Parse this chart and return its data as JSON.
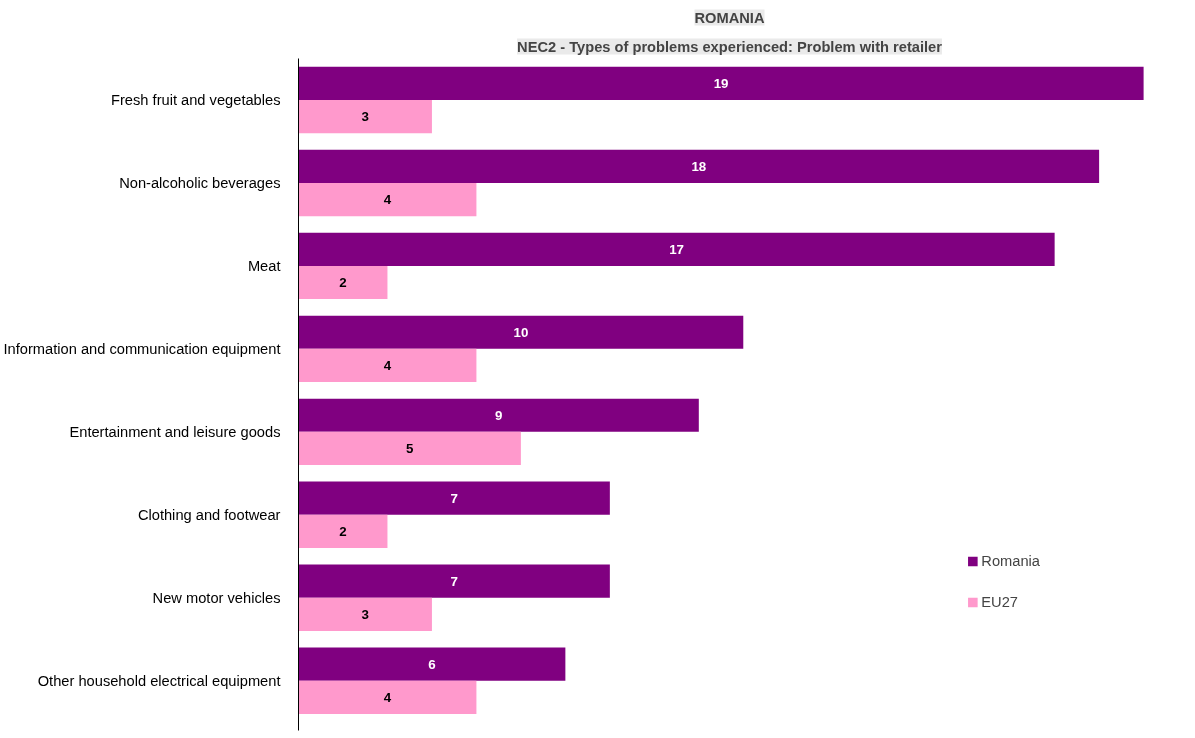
{
  "chart_data": {
    "type": "bar",
    "orientation": "horizontal",
    "title": "ROMANIA",
    "subtitle": "NEC2 - Types of problems experienced: Problem with retailer",
    "categories": [
      "Fresh fruit and vegetables",
      "Non-alcoholic beverages",
      "Meat",
      "Information and communication equipment",
      "Entertainment and leisure goods",
      "Clothing and footwear",
      "New motor vehicles",
      "Other household electrical equipment"
    ],
    "series": [
      {
        "name": "Romania",
        "color": "#800080",
        "values": [
          19,
          18,
          17,
          10,
          9,
          7,
          7,
          6
        ]
      },
      {
        "name": "EU27",
        "color": "#ff99cc",
        "values": [
          3,
          4,
          2,
          4,
          5,
          2,
          3,
          4
        ]
      }
    ],
    "data_labels": true,
    "tick_labels": "y",
    "grid": false,
    "legend": "bottom right"
  }
}
